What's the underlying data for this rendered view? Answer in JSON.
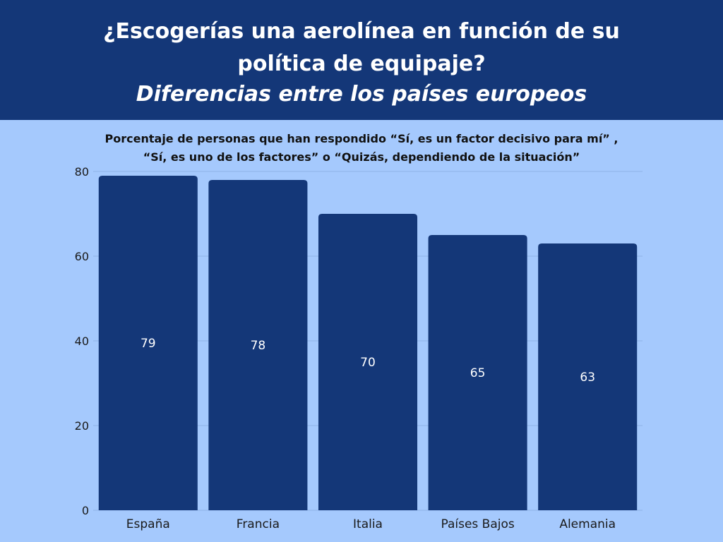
{
  "header": {
    "title_line1": "¿Escogerías una aerolínea en función de su",
    "title_line2": "política de equipaje?",
    "title_italic": "Diferencias entre los países europeos"
  },
  "chart_data": {
    "type": "bar",
    "title": "Porcentaje de personas que han respondido “Sí, es un factor decisivo para mí” ,",
    "subtitle": "“Sí, es uno de los factores” o “Quizás, dependiendo de la situación”",
    "categories": [
      "España",
      "Francia",
      "Italia",
      "Países Bajos",
      "Alemania"
    ],
    "values": [
      79,
      78,
      70,
      65,
      63
    ],
    "ylim": [
      0,
      80
    ],
    "yticks": [
      0,
      20,
      40,
      60,
      80
    ],
    "grid": true,
    "xlabel": "",
    "ylabel": "",
    "colors": {
      "bar": "#143778",
      "background": "#a5c9fd",
      "header": "#143778"
    }
  }
}
